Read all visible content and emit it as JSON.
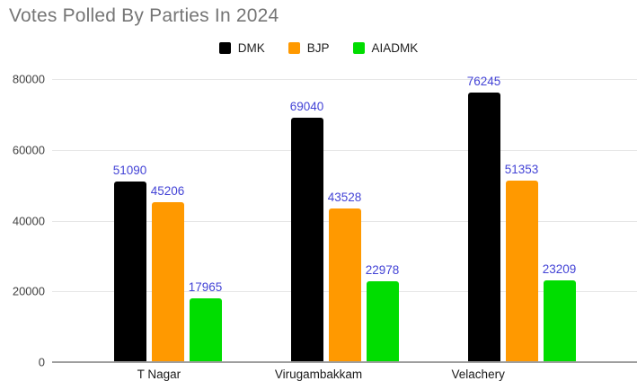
{
  "title": "Votes Polled By Parties In 2024",
  "legend": {
    "position": "top",
    "items": [
      {
        "label": "DMK",
        "color": "#000000"
      },
      {
        "label": "BJP",
        "color": "#ff9900"
      },
      {
        "label": "AIADMK",
        "color": "#00dd00"
      }
    ]
  },
  "axes": {
    "y_tick_labels": [
      "0",
      "20000",
      "40000",
      "60000",
      "80000"
    ],
    "x_tick_labels": [
      "T Nagar",
      "Virugambakkam",
      "Velachery"
    ]
  },
  "chart_data": {
    "type": "bar",
    "title": "Votes Polled By Parties In 2024",
    "categories": [
      "T Nagar",
      "Virugambakkam",
      "Velachery"
    ],
    "series": [
      {
        "name": "DMK",
        "color": "#000000",
        "values": [
          51090,
          69040,
          76245
        ]
      },
      {
        "name": "BJP",
        "color": "#ff9900",
        "values": [
          45206,
          43528,
          51353
        ]
      },
      {
        "name": "AIADMK",
        "color": "#00dd00",
        "values": [
          17965,
          22978,
          23209
        ]
      }
    ],
    "xlabel": "",
    "ylabel": "",
    "ylim": [
      0,
      80000
    ],
    "yticks": [
      0,
      20000,
      40000,
      60000,
      80000
    ],
    "grid": true,
    "legend_position": "top",
    "value_labels_shown": true,
    "value_label_color": "#4343d6",
    "title_color": "#757575",
    "gridline_color": "#e6e6e6",
    "baseline_color": "#9e9e9e",
    "background_color": "#ffffff"
  }
}
